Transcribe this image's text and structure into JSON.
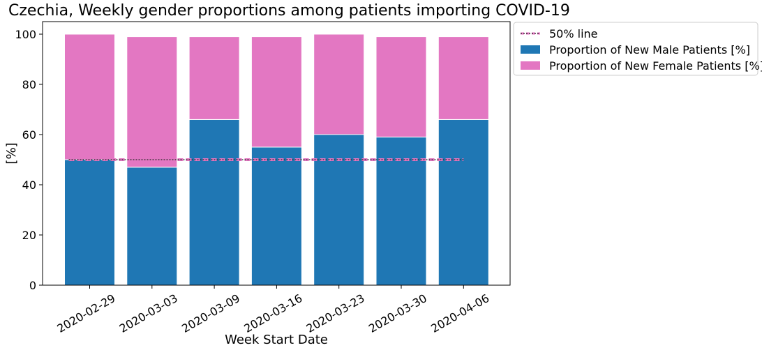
{
  "chart_data": {
    "type": "bar",
    "stacked": true,
    "title": "Czechia, Weekly gender proportions among patients importing COVID-19",
    "xlabel": "Week Start Date",
    "ylabel": "[%]",
    "ylim": [
      0,
      105
    ],
    "yticks": [
      0,
      20,
      40,
      60,
      80,
      100
    ],
    "categories": [
      "2020-02-29",
      "2020-03-03",
      "2020-03-09",
      "2020-03-16",
      "2020-03-23",
      "2020-03-30",
      "2020-04-06"
    ],
    "series": [
      {
        "name": "Proportion of New Male Patients [%]",
        "color": "#1f77b4",
        "values": [
          50,
          47,
          66,
          55,
          60,
          59,
          66
        ]
      },
      {
        "name": "Proportion of New Female Patients [%]",
        "color": "#e377c2",
        "values": [
          50,
          52,
          33,
          44,
          40,
          40,
          33
        ]
      }
    ],
    "reference_line": {
      "name": "50% line",
      "value": 50,
      "color": "#e377c2",
      "style": "dashed"
    },
    "grid": false,
    "legend": "outside-top-right"
  }
}
